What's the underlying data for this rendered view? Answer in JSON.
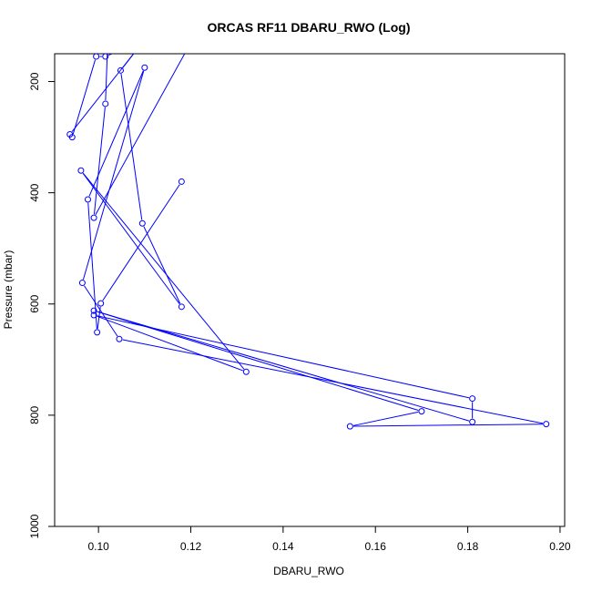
{
  "chart_data": {
    "type": "line",
    "title": "ORCAS RF11 DBARU_RWO (Log)",
    "xlabel": "DBARU_RWO",
    "ylabel": "Pressure (mbar)",
    "xlim": [
      0.0905,
      0.201
    ],
    "ylim": [
      1000,
      150
    ],
    "y_reversed": true,
    "grid": false,
    "series_color": "#0000FF",
    "x_ticks": [
      0.1,
      0.12,
      0.14,
      0.16,
      0.18,
      0.2
    ],
    "x_tick_labels": [
      "0.10",
      "0.12",
      "0.14",
      "0.16",
      "0.18",
      "0.20"
    ],
    "y_ticks": [
      200,
      400,
      600,
      800,
      1000
    ],
    "y_tick_labels": [
      "200",
      "400",
      "600",
      "800",
      "1000"
    ],
    "series": [
      {
        "points": [
          [
            0.1087,
            130
          ],
          [
            0.1015,
            155
          ],
          [
            0.0995,
            155
          ],
          [
            0.0943,
            300
          ],
          [
            0.0938,
            295
          ],
          [
            0.1095,
            130
          ],
          [
            0.1048,
            180
          ],
          [
            0.1095,
            455
          ],
          [
            0.118,
            605
          ],
          [
            0.0962,
            360
          ],
          [
            0.132,
            722
          ],
          [
            0.099,
            620
          ],
          [
            0.181,
            770
          ],
          [
            0.181,
            812
          ],
          [
            0.099,
            612
          ],
          [
            0.17,
            793
          ],
          [
            0.1545,
            820
          ],
          [
            0.197,
            816
          ],
          [
            0.1045,
            663
          ],
          [
            0.0965,
            562
          ],
          [
            0.11,
            175
          ],
          [
            0.0977,
            412
          ],
          [
            0.0997,
            651
          ],
          [
            0.1005,
            599
          ],
          [
            0.118,
            380
          ]
        ]
      },
      {
        "points": [
          [
            0.102,
            130
          ],
          [
            0.1015,
            240
          ],
          [
            0.099,
            445
          ],
          [
            0.12,
            130
          ]
        ]
      }
    ]
  }
}
